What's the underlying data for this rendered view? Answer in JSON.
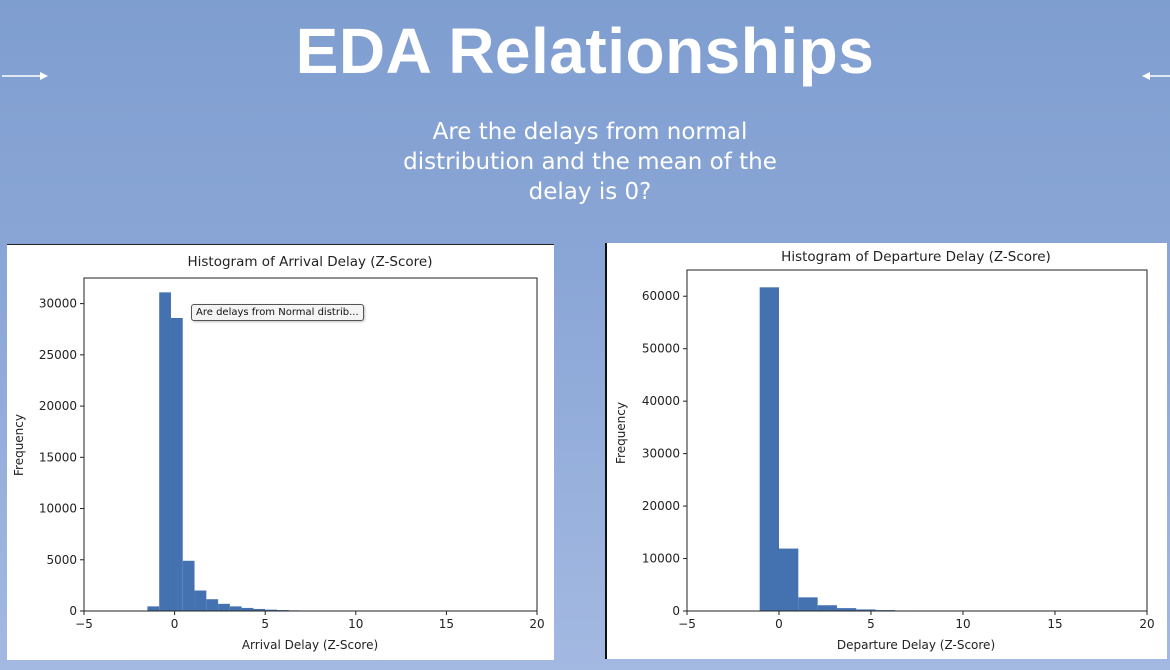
{
  "slide": {
    "title": "EDA Relationships",
    "subtitle": "Are the delays from normal distribution and the mean of the delay is 0?",
    "colors": {
      "background": "#8aa6d6",
      "bar": "#4472b0",
      "text": "#ffffff"
    }
  },
  "tooltip": {
    "text": "Are delays from Normal distrib..."
  },
  "chart_data": [
    {
      "type": "bar",
      "title": "Histogram of Arrival Delay (Z-Score)",
      "xlabel": "Arrival Delay (Z-Score)",
      "ylabel": "Frequency",
      "xlim": [
        -5,
        20
      ],
      "ylim": [
        0,
        32500
      ],
      "xticks": [
        -5,
        0,
        5,
        10,
        15,
        20
      ],
      "yticks": [
        0,
        5000,
        10000,
        15000,
        20000,
        25000,
        30000
      ],
      "bins": [
        {
          "x0": -1.5,
          "x1": -0.85,
          "value": 450
        },
        {
          "x0": -0.85,
          "x1": -0.2,
          "value": 31100
        },
        {
          "x0": -0.2,
          "x1": 0.45,
          "value": 28600
        },
        {
          "x0": 0.45,
          "x1": 1.1,
          "value": 4900
        },
        {
          "x0": 1.1,
          "x1": 1.75,
          "value": 2000
        },
        {
          "x0": 1.75,
          "x1": 2.4,
          "value": 1150
        },
        {
          "x0": 2.4,
          "x1": 3.05,
          "value": 700
        },
        {
          "x0": 3.05,
          "x1": 3.7,
          "value": 450
        },
        {
          "x0": 3.7,
          "x1": 4.35,
          "value": 300
        },
        {
          "x0": 4.35,
          "x1": 5.0,
          "value": 200
        },
        {
          "x0": 5.0,
          "x1": 5.65,
          "value": 130
        },
        {
          "x0": 5.65,
          "x1": 6.3,
          "value": 90
        },
        {
          "x0": 6.3,
          "x1": 6.95,
          "value": 60
        },
        {
          "x0": 6.95,
          "x1": 7.6,
          "value": 40
        },
        {
          "x0": 7.6,
          "x1": 8.25,
          "value": 25
        }
      ]
    },
    {
      "type": "bar",
      "title": "Histogram of Departure Delay (Z-Score)",
      "xlabel": "Departure Delay (Z-Score)",
      "ylabel": "Frequency",
      "xlim": [
        -5,
        20
      ],
      "ylim": [
        0,
        65000
      ],
      "xticks": [
        -5,
        0,
        5,
        10,
        15,
        20
      ],
      "yticks": [
        0,
        10000,
        20000,
        30000,
        40000,
        50000,
        60000
      ],
      "bins": [
        {
          "x0": -1.05,
          "x1": 0.0,
          "value": 61700
        },
        {
          "x0": 0.0,
          "x1": 1.05,
          "value": 11900
        },
        {
          "x0": 1.05,
          "x1": 2.1,
          "value": 2600
        },
        {
          "x0": 2.1,
          "x1": 3.15,
          "value": 1100
        },
        {
          "x0": 3.15,
          "x1": 4.2,
          "value": 550
        },
        {
          "x0": 4.2,
          "x1": 5.25,
          "value": 300
        },
        {
          "x0": 5.25,
          "x1": 6.3,
          "value": 170
        },
        {
          "x0": 6.3,
          "x1": 7.35,
          "value": 100
        }
      ]
    }
  ]
}
